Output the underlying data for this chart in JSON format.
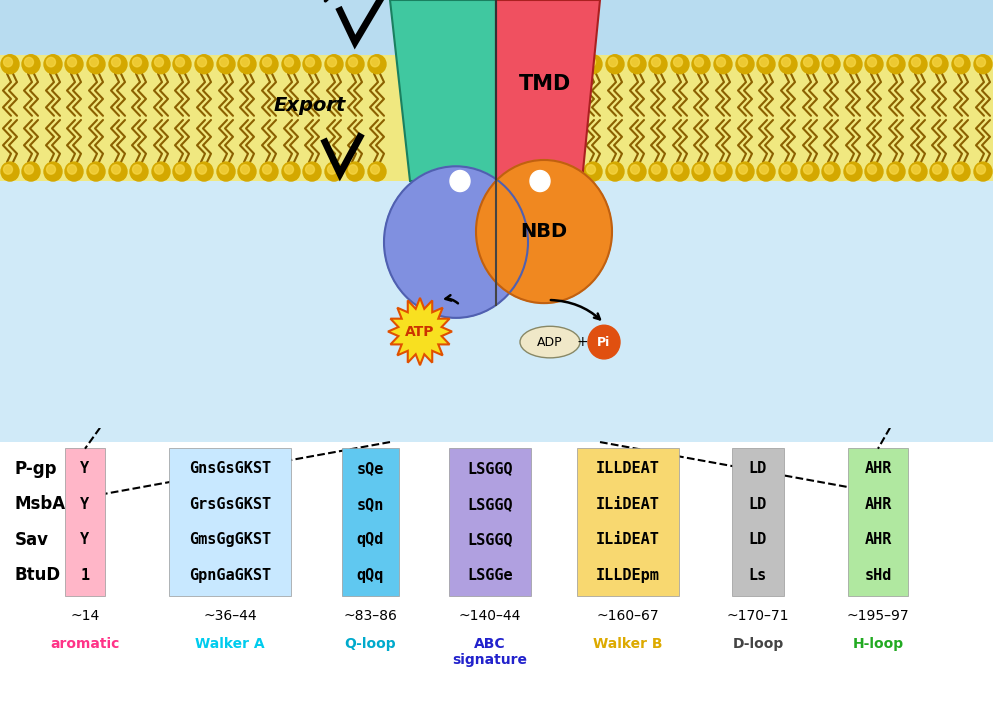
{
  "rows": [
    "P-gp",
    "MsbA",
    "Sav",
    "BtuD"
  ],
  "columns": [
    {
      "label": "aromatic",
      "pos_label": "~14",
      "color": "#ffb6c8",
      "data": [
        "Y",
        "Y",
        "Y",
        "1"
      ]
    },
    {
      "label": "Walker A",
      "pos_label": "~36–44",
      "color": "#c8e8ff",
      "data": [
        "GnsGsGKST",
        "GrsGsGKST",
        "GmsGgGKST",
        "GpnGaGKST"
      ]
    },
    {
      "label": "Q-loop",
      "pos_label": "~83–86",
      "color": "#60c8f0",
      "data": [
        "sQe",
        "sQn",
        "qQd",
        "qQq"
      ]
    },
    {
      "label": "ABC\nsignature",
      "pos_label": "~140–44",
      "color": "#b0a0e0",
      "data": [
        "LSGGQ",
        "LSGGQ",
        "LSGGQ",
        "LSGGe"
      ]
    },
    {
      "label": "Walker B",
      "pos_label": "~160–67",
      "color": "#f8d870",
      "data": [
        "ILLDEAT",
        "ILiDEAT",
        "ILiDEAT",
        "ILLDEpm"
      ]
    },
    {
      "label": "D-loop",
      "pos_label": "~170–71",
      "color": "#c0c0c0",
      "data": [
        "LD",
        "LD",
        "LD",
        "Ls"
      ]
    },
    {
      "label": "H-loop",
      "pos_label": "~195–97",
      "color": "#b0e8a0",
      "data": [
        "AHR",
        "AHR",
        "AHR",
        "sHd"
      ]
    }
  ],
  "label_colors": {
    "aromatic": "#ff3388",
    "Walker A": "#00ccee",
    "Q-loop": "#00aacc",
    "ABC\nsignature": "#2222cc",
    "Walker B": "#ddaa00",
    "D-loop": "#444444",
    "H-loop": "#22aa22"
  },
  "mem_top_color": "#f0e890",
  "mem_mid_color": "#e8d060",
  "water_top_color": "#b0d8f0",
  "water_bot_color": "#c8e0f8",
  "tmd_left_color": "#40c8a0",
  "tmd_right_color": "#f05060",
  "nbd_left_color": "#8090e0",
  "nbd_right_color": "#f08820",
  "atp_yellow": "#f8e020",
  "atp_text_color": "#cc4400",
  "adp_color": "#f0e8d0",
  "pi_color": "#e05010"
}
